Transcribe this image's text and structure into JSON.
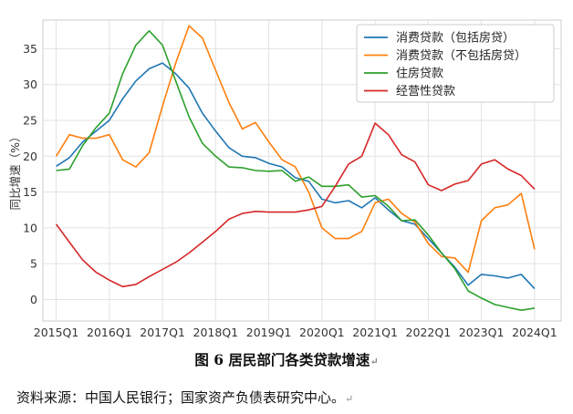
{
  "chart_data": {
    "type": "line",
    "title": "",
    "ylabel": "同比增速（%）",
    "xlabel": "",
    "ylim": [
      -3,
      39
    ],
    "xlim": [
      2014.75,
      2024.5
    ],
    "grid": true,
    "legend": "top-right",
    "yticks": [
      0,
      5,
      10,
      15,
      20,
      25,
      30,
      35
    ],
    "xticks": [
      {
        "label": "2015Q1",
        "x": 2015
      },
      {
        "label": "2016Q1",
        "x": 2016
      },
      {
        "label": "2017Q1",
        "x": 2017
      },
      {
        "label": "2018Q1",
        "x": 2018
      },
      {
        "label": "2019Q1",
        "x": 2019
      },
      {
        "label": "2020Q1",
        "x": 2020
      },
      {
        "label": "2021Q1",
        "x": 2021
      },
      {
        "label": "2022Q1",
        "x": 2022
      },
      {
        "label": "2023Q1",
        "x": 2023
      },
      {
        "label": "2024Q1",
        "x": 2024
      }
    ],
    "x": [
      2015,
      2015.25,
      2015.5,
      2015.75,
      2016,
      2016.25,
      2016.5,
      2016.75,
      2017,
      2017.25,
      2017.5,
      2017.75,
      2018,
      2018.25,
      2018.5,
      2018.75,
      2019,
      2019.25,
      2019.5,
      2019.75,
      2020,
      2020.25,
      2020.5,
      2020.75,
      2021,
      2021.25,
      2021.5,
      2021.75,
      2022,
      2022.25,
      2022.5,
      2022.75,
      2023,
      2023.25,
      2023.5,
      2023.75,
      2024
    ],
    "series": [
      {
        "name": "消费贷款（包括房贷）",
        "color": "#1f77b4",
        "values": [
          18.6,
          19.8,
          22.0,
          23.5,
          25.0,
          28.0,
          30.5,
          32.2,
          33.0,
          31.5,
          29.5,
          26.0,
          23.5,
          21.2,
          20.0,
          19.8,
          19.0,
          18.5,
          17.0,
          16.5,
          14.0,
          13.5,
          13.8,
          12.8,
          14.2,
          12.5,
          11.0,
          10.5,
          8.5,
          6.5,
          4.5,
          2.0,
          3.5,
          3.3,
          3.0,
          3.5,
          1.5
        ]
      },
      {
        "name": "消费贷款（不包括房贷）",
        "color": "#ff7f0e",
        "values": [
          20.0,
          23.0,
          22.5,
          22.5,
          23.0,
          19.5,
          18.5,
          20.5,
          27.0,
          33.0,
          38.2,
          36.5,
          32.0,
          27.5,
          23.8,
          24.7,
          22.0,
          19.5,
          18.5,
          15.0,
          10.0,
          8.5,
          8.5,
          9.5,
          13.5,
          14.0,
          12.0,
          10.8,
          7.8,
          6.0,
          5.8,
          3.8,
          11.0,
          12.8,
          13.2,
          14.8,
          7.0
        ]
      },
      {
        "name": "住房贷款",
        "color": "#2ca02c",
        "values": [
          18.0,
          18.2,
          21.5,
          24.0,
          26.0,
          31.5,
          35.5,
          37.5,
          35.5,
          30.5,
          25.5,
          21.8,
          20.0,
          18.5,
          18.4,
          18.0,
          17.9,
          18.0,
          16.5,
          17.1,
          15.8,
          15.8,
          16.0,
          14.3,
          14.5,
          13.0,
          11.0,
          11.1,
          9.0,
          6.5,
          4.3,
          1.2,
          0.2,
          -0.7,
          -1.1,
          -1.5,
          -1.2
        ]
      },
      {
        "name": "经营性贷款",
        "color": "#d62728",
        "values": [
          10.5,
          8.0,
          5.5,
          3.8,
          2.7,
          1.8,
          2.1,
          3.2,
          4.2,
          5.2,
          6.5,
          8.0,
          9.5,
          11.2,
          12.0,
          12.3,
          12.2,
          12.2,
          12.2,
          12.5,
          13.0,
          15.8,
          18.9,
          20.0,
          24.6,
          23.0,
          20.2,
          19.2,
          16.0,
          15.2,
          16.1,
          16.6,
          18.9,
          19.5,
          18.2,
          17.3,
          15.4
        ]
      }
    ]
  },
  "caption": "图 6 居民部门各类贷款增速",
  "source": "资料来源：中国人民银行；国家资产负债表研究中心。",
  "para_mark": "↵"
}
